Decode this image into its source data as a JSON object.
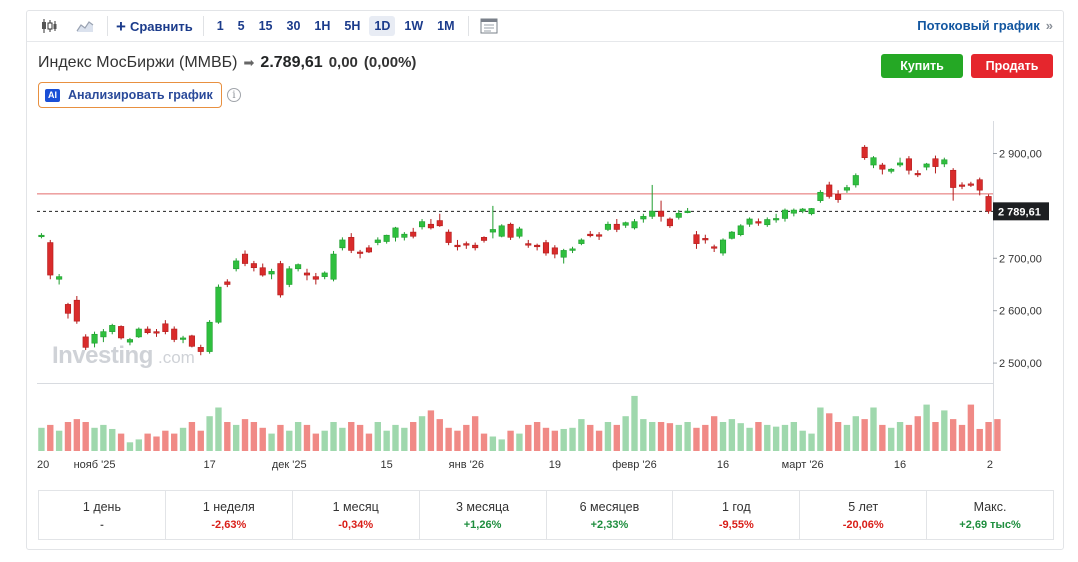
{
  "toolbar": {
    "compare_label": "Сравнить",
    "intervals": [
      "1",
      "5",
      "15",
      "30",
      "1H",
      "5H",
      "1D",
      "1W",
      "1M"
    ],
    "active_interval": "1D",
    "streaming_label": "Потоковый график",
    "streaming_chevron": "»"
  },
  "header": {
    "name": "Индекс МосБиржи (MMBБ)",
    "arrow": "➡",
    "price": "2.789,61",
    "change": "0,00",
    "change_pct": "(0,00%)",
    "buy_label": "Купить",
    "sell_label": "Продать",
    "ai_badge": "AI",
    "ai_label": "Анализировать график",
    "info_glyph": "i"
  },
  "watermark": {
    "brand": "Investing",
    "suffix": ".com"
  },
  "chart_data": {
    "type": "candlestick",
    "last_price_label": "2 789,61",
    "last_price": 2789.61,
    "reference_line": 2823,
    "y_ticks": [
      2900,
      2800,
      2700,
      2600,
      2500
    ],
    "y_tick_labels": [
      "2 900,00",
      "2 800,00",
      "2 700,00",
      "2 600,00",
      "2 500,00"
    ],
    "ylim": [
      2462,
      2962
    ],
    "x_tick_labels": [
      {
        "label": "20",
        "index": 0
      },
      {
        "label": "нояб '25",
        "index": 6
      },
      {
        "label": "17",
        "index": 19
      },
      {
        "label": "дек '25",
        "index": 28
      },
      {
        "label": "15",
        "index": 39
      },
      {
        "label": "янв '26",
        "index": 48
      },
      {
        "label": "19",
        "index": 58
      },
      {
        "label": "февр '26",
        "index": 67
      },
      {
        "label": "16",
        "index": 77
      },
      {
        "label": "март '26",
        "index": 86
      },
      {
        "label": "16",
        "index": 97
      },
      {
        "label": "2",
        "index": 109
      }
    ],
    "grid": false,
    "candles": [
      [
        2742,
        2748,
        2738,
        2744
      ],
      [
        2730,
        2735,
        2660,
        2668
      ],
      [
        2660,
        2670,
        2650,
        2665
      ],
      [
        2612,
        2615,
        2585,
        2595
      ],
      [
        2620,
        2628,
        2575,
        2580
      ],
      [
        2550,
        2555,
        2525,
        2530
      ],
      [
        2538,
        2560,
        2530,
        2555
      ],
      [
        2550,
        2565,
        2540,
        2560
      ],
      [
        2560,
        2575,
        2555,
        2572
      ],
      [
        2570,
        2572,
        2545,
        2548
      ],
      [
        2540,
        2548,
        2534,
        2545
      ],
      [
        2550,
        2568,
        2548,
        2565
      ],
      [
        2565,
        2570,
        2555,
        2558
      ],
      [
        2560,
        2565,
        2550,
        2558
      ],
      [
        2575,
        2582,
        2555,
        2560
      ],
      [
        2565,
        2570,
        2540,
        2545
      ],
      [
        2548,
        2552,
        2538,
        2548
      ],
      [
        2552,
        2554,
        2530,
        2532
      ],
      [
        2530,
        2535,
        2515,
        2522
      ],
      [
        2522,
        2582,
        2518,
        2578
      ],
      [
        2578,
        2650,
        2575,
        2645
      ],
      [
        2655,
        2660,
        2645,
        2650
      ],
      [
        2680,
        2700,
        2675,
        2695
      ],
      [
        2708,
        2715,
        2685,
        2690
      ],
      [
        2690,
        2695,
        2675,
        2682
      ],
      [
        2682,
        2690,
        2665,
        2668
      ],
      [
        2670,
        2680,
        2660,
        2675
      ],
      [
        2690,
        2695,
        2625,
        2630
      ],
      [
        2650,
        2685,
        2645,
        2680
      ],
      [
        2680,
        2690,
        2675,
        2688
      ],
      [
        2672,
        2680,
        2658,
        2668
      ],
      [
        2665,
        2672,
        2650,
        2660
      ],
      [
        2665,
        2675,
        2660,
        2672
      ],
      [
        2660,
        2714,
        2656,
        2708
      ],
      [
        2720,
        2740,
        2715,
        2735
      ],
      [
        2740,
        2748,
        2710,
        2715
      ],
      [
        2712,
        2716,
        2700,
        2710
      ],
      [
        2720,
        2725,
        2710,
        2712
      ],
      [
        2730,
        2740,
        2725,
        2735
      ],
      [
        2732,
        2745,
        2728,
        2744
      ],
      [
        2740,
        2760,
        2732,
        2758
      ],
      [
        2740,
        2750,
        2734,
        2746
      ],
      [
        2750,
        2758,
        2738,
        2742
      ],
      [
        2760,
        2775,
        2755,
        2770
      ],
      [
        2765,
        2775,
        2755,
        2758
      ],
      [
        2772,
        2785,
        2760,
        2762
      ],
      [
        2750,
        2755,
        2725,
        2730
      ],
      [
        2725,
        2735,
        2715,
        2722
      ],
      [
        2728,
        2732,
        2718,
        2725
      ],
      [
        2725,
        2730,
        2715,
        2720
      ],
      [
        2740,
        2742,
        2730,
        2734
      ],
      [
        2750,
        2800,
        2738,
        2755
      ],
      [
        2742,
        2765,
        2740,
        2762
      ],
      [
        2765,
        2768,
        2735,
        2740
      ],
      [
        2742,
        2760,
        2738,
        2756
      ],
      [
        2728,
        2735,
        2720,
        2725
      ],
      [
        2725,
        2728,
        2715,
        2722
      ],
      [
        2730,
        2735,
        2705,
        2710
      ],
      [
        2720,
        2725,
        2700,
        2708
      ],
      [
        2702,
        2718,
        2690,
        2715
      ],
      [
        2715,
        2722,
        2710,
        2718
      ],
      [
        2728,
        2738,
        2725,
        2735
      ],
      [
        2746,
        2752,
        2740,
        2743
      ],
      [
        2745,
        2750,
        2735,
        2742
      ],
      [
        2755,
        2770,
        2752,
        2765
      ],
      [
        2765,
        2775,
        2750,
        2755
      ],
      [
        2763,
        2770,
        2758,
        2768
      ],
      [
        2758,
        2775,
        2755,
        2770
      ],
      [
        2775,
        2785,
        2768,
        2780
      ],
      [
        2780,
        2840,
        2775,
        2790
      ],
      [
        2790,
        2810,
        2770,
        2780
      ],
      [
        2775,
        2778,
        2758,
        2762
      ],
      [
        2778,
        2792,
        2774,
        2786
      ],
      [
        2790,
        2796,
        2786,
        2790
      ],
      [
        2745,
        2752,
        2718,
        2728
      ],
      [
        2738,
        2745,
        2728,
        2735
      ],
      [
        2722,
        2726,
        2712,
        2720
      ],
      [
        2710,
        2738,
        2705,
        2735
      ],
      [
        2738,
        2752,
        2736,
        2750
      ],
      [
        2745,
        2765,
        2742,
        2762
      ],
      [
        2765,
        2778,
        2760,
        2775
      ],
      [
        2770,
        2776,
        2762,
        2768
      ],
      [
        2764,
        2778,
        2760,
        2774
      ],
      [
        2775,
        2785,
        2768,
        2776
      ],
      [
        2776,
        2795,
        2770,
        2792
      ],
      [
        2786,
        2795,
        2780,
        2792
      ],
      [
        2790,
        2796,
        2786,
        2794
      ],
      [
        2785,
        2796,
        2782,
        2795
      ],
      [
        2810,
        2830,
        2806,
        2826
      ],
      [
        2840,
        2846,
        2814,
        2818
      ],
      [
        2822,
        2830,
        2806,
        2812
      ],
      [
        2830,
        2840,
        2825,
        2835
      ],
      [
        2840,
        2862,
        2835,
        2858
      ],
      [
        2912,
        2916,
        2888,
        2892
      ],
      [
        2878,
        2895,
        2872,
        2892
      ],
      [
        2878,
        2882,
        2860,
        2870
      ],
      [
        2866,
        2872,
        2862,
        2870
      ],
      [
        2878,
        2892,
        2874,
        2882
      ],
      [
        2890,
        2895,
        2860,
        2868
      ],
      [
        2862,
        2868,
        2855,
        2860
      ],
      [
        2874,
        2882,
        2868,
        2880
      ],
      [
        2890,
        2896,
        2862,
        2875
      ],
      [
        2880,
        2892,
        2874,
        2888
      ],
      [
        2868,
        2872,
        2810,
        2835
      ],
      [
        2840,
        2845,
        2832,
        2838
      ],
      [
        2842,
        2846,
        2836,
        2840
      ],
      [
        2850,
        2854,
        2820,
        2830
      ],
      [
        2818,
        2822,
        2785,
        2790
      ]
    ],
    "volumes": [
      0.4,
      0.45,
      0.35,
      0.5,
      0.55,
      0.5,
      0.4,
      0.45,
      0.38,
      0.3,
      0.15,
      0.2,
      0.3,
      0.25,
      0.35,
      0.3,
      0.4,
      0.5,
      0.35,
      0.6,
      0.75,
      0.5,
      0.45,
      0.55,
      0.5,
      0.4,
      0.3,
      0.45,
      0.35,
      0.5,
      0.45,
      0.3,
      0.35,
      0.5,
      0.4,
      0.5,
      0.45,
      0.3,
      0.5,
      0.35,
      0.45,
      0.4,
      0.5,
      0.6,
      0.7,
      0.55,
      0.4,
      0.35,
      0.45,
      0.6,
      0.3,
      0.25,
      0.2,
      0.35,
      0.3,
      0.45,
      0.5,
      0.4,
      0.35,
      0.38,
      0.4,
      0.55,
      0.45,
      0.35,
      0.5,
      0.45,
      0.6,
      0.95,
      0.55,
      0.5,
      0.5,
      0.48,
      0.45,
      0.5,
      0.4,
      0.45,
      0.6,
      0.5,
      0.55,
      0.48,
      0.4,
      0.5,
      0.45,
      0.42,
      0.45,
      0.5,
      0.35,
      0.3,
      0.75,
      0.65,
      0.5,
      0.45,
      0.6,
      0.55,
      0.75,
      0.45,
      0.4,
      0.5,
      0.45,
      0.6,
      0.8,
      0.5,
      0.7,
      0.55,
      0.45,
      0.8,
      0.38,
      0.5,
      0.55
    ]
  },
  "periods": [
    {
      "label": "1 день",
      "value": "-",
      "tone": "neu"
    },
    {
      "label": "1 неделя",
      "value": "-2,63%",
      "tone": "neg"
    },
    {
      "label": "1 месяц",
      "value": "-0,34%",
      "tone": "neg"
    },
    {
      "label": "3 месяца",
      "value": "+1,26%",
      "tone": "pos"
    },
    {
      "label": "6 месяцев",
      "value": "+2,33%",
      "tone": "pos"
    },
    {
      "label": "1 год",
      "value": "-9,55%",
      "tone": "neg"
    },
    {
      "label": "5 лет",
      "value": "-20,06%",
      "tone": "neg"
    },
    {
      "label": "Макс.",
      "value": "+2,69 тыс%",
      "tone": "pos"
    }
  ],
  "colors": {
    "up": "#1f9e2f",
    "up_fill": "#2fbf3e",
    "down": "#b31b1b",
    "down_fill": "#d92b2b",
    "vol_up": "#9fd8ad",
    "vol_down": "#f08a86",
    "reference": "#e36b6b",
    "accent": "#1b3b8b"
  }
}
